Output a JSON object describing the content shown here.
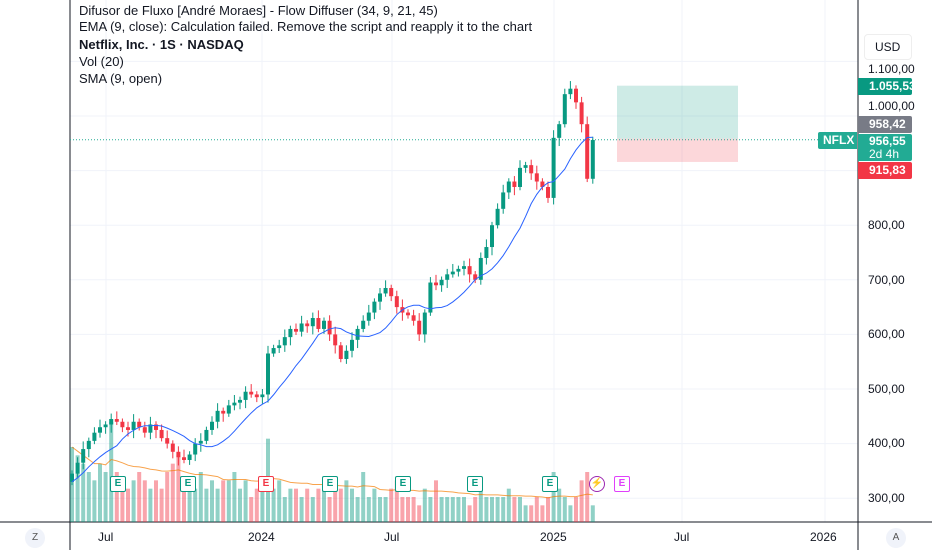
{
  "legend": {
    "indicator1": "Difusor de Fluxo [André Moraes] - Flow Diffuser (34, 9, 21, 45)",
    "indicator2": "EMA (9, close): Calculation failed. Remove the script and reapply it to the chart",
    "symbol": "Netflix, Inc. · 1S · NASDAQ",
    "volume": "Vol (20)",
    "sma": "SMA (9, open)"
  },
  "currency": "USD",
  "price_labels": [
    "1.100,00",
    "1.000,00",
    "800,00",
    "700,00",
    "600,00",
    "500,00",
    "400,00",
    "300,00"
  ],
  "tags": {
    "target": "1.055,53",
    "entry": "958,42",
    "last": "956,55",
    "countdown": "2d 4h",
    "stop": "915,83",
    "symbol": "NFLX"
  },
  "time_labels": [
    "Jul",
    "2024",
    "Jul",
    "2025",
    "Jul",
    "2026"
  ],
  "buttons": {
    "zoom": "Z",
    "auto": "A"
  },
  "events": [
    {
      "type": "E",
      "color": "#089981"
    },
    {
      "type": "E",
      "color": "#089981"
    },
    {
      "type": "E",
      "color": "#f23645"
    },
    {
      "type": "E",
      "color": "#089981"
    },
    {
      "type": "E",
      "color": "#089981"
    },
    {
      "type": "E",
      "color": "#089981"
    },
    {
      "type": "E",
      "color": "#089981"
    },
    {
      "type": "⚡",
      "color": "#9c27b0"
    },
    {
      "type": "E",
      "color": "#e040fb"
    }
  ],
  "colors": {
    "up": "#089981",
    "down": "#f23645",
    "sma": "#2962ff",
    "volma": "#f57c00"
  },
  "chart_data": {
    "type": "candlestick",
    "closes": [
      345,
      365,
      390,
      405,
      420,
      430,
      435,
      445,
      440,
      430,
      425,
      440,
      430,
      420,
      435,
      425,
      410,
      400,
      385,
      375,
      370,
      380,
      400,
      405,
      425,
      440,
      460,
      455,
      470,
      475,
      480,
      495,
      490,
      485,
      490,
      565,
      575,
      580,
      595,
      610,
      605,
      620,
      615,
      630,
      610,
      625,
      600,
      580,
      555,
      570,
      590,
      610,
      625,
      640,
      660,
      675,
      685,
      670,
      650,
      640,
      635,
      625,
      600,
      640,
      695,
      690,
      700,
      710,
      715,
      720,
      725,
      710,
      700,
      740,
      760,
      800,
      830,
      860,
      880,
      870,
      905,
      910,
      895,
      880,
      870,
      850,
      960,
      985,
      1040,
      1050,
      1025,
      985,
      885,
      956
    ],
    "volumes": [
      9,
      8,
      7,
      6,
      5,
      7,
      6,
      12,
      6,
      5,
      4,
      5,
      6,
      5,
      4,
      5,
      4,
      6,
      7,
      8,
      5,
      4,
      4,
      6,
      4,
      5,
      4,
      5,
      5,
      6,
      4,
      5,
      3,
      4,
      5,
      10,
      4,
      5,
      3,
      4,
      4,
      3,
      4,
      3,
      4,
      5,
      3,
      4,
      4,
      5,
      4,
      3,
      6,
      3,
      4,
      3,
      3,
      4,
      5,
      3,
      3,
      3,
      2,
      4,
      3,
      5,
      3,
      3,
      3,
      3,
      3,
      2,
      3,
      4,
      3,
      3,
      3,
      3,
      4,
      3,
      3,
      2,
      2,
      3,
      2,
      3,
      6,
      4,
      3,
      2,
      3,
      5,
      6,
      2
    ],
    "position": {
      "target": 1055.53,
      "entry": 958.42,
      "stop": 915.83
    },
    "ylim": [
      260,
      1140
    ]
  }
}
